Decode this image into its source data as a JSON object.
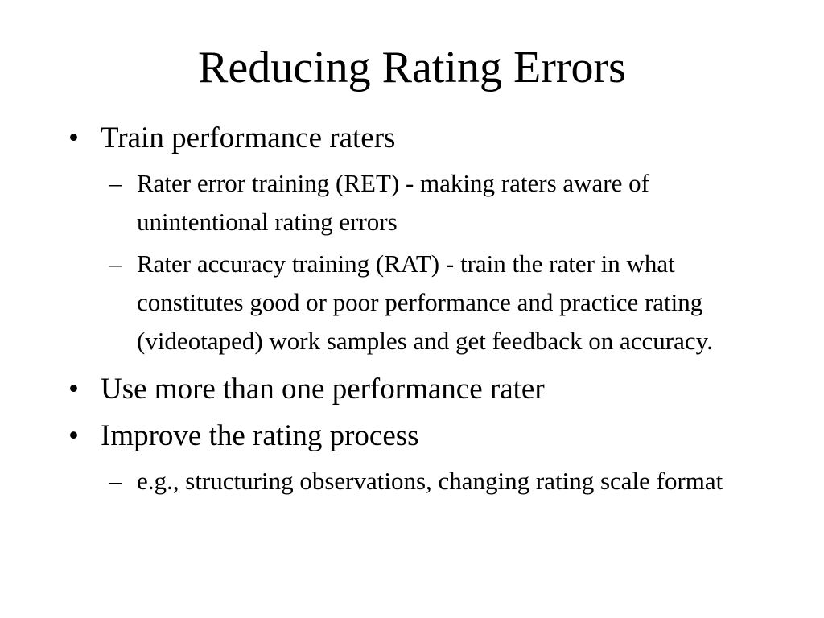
{
  "slide": {
    "title": "Reducing Rating Errors",
    "bullet_symbol": "•",
    "dash_symbol": "–",
    "bullets": [
      {
        "text": "Train performance raters",
        "sub": [
          "Rater error training (RET) - making raters aware of unintentional rating errors",
          "Rater accuracy training (RAT) - train the rater in what constitutes good or poor performance and practice rating (videotaped) work samples and get feedback on accuracy."
        ]
      },
      {
        "text": "Use more than one performance rater",
        "sub": []
      },
      {
        "text": "Improve the rating process",
        "sub": [
          "e.g., structuring observations, changing rating scale format"
        ]
      }
    ]
  }
}
